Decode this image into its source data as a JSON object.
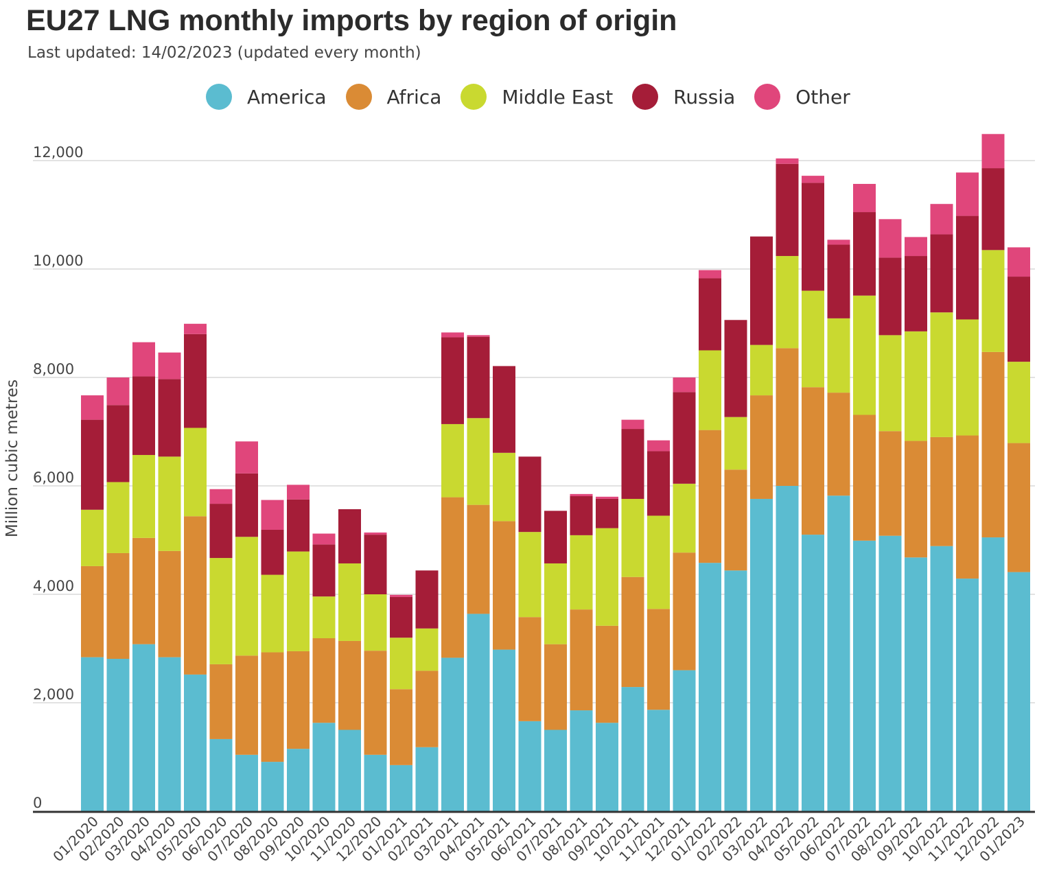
{
  "chart_data": {
    "type": "bar",
    "stacked": true,
    "title": "EU27 LNG monthly imports by region of origin",
    "subtitle": "Last updated: 14/02/2023 (updated every month)",
    "ylabel": "Million cubic metres",
    "xlabel": "",
    "ylim": [
      0,
      12000
    ],
    "yticks": [
      0,
      2000,
      4000,
      6000,
      8000,
      10000,
      12000
    ],
    "ytick_labels": [
      "0",
      "2,000",
      "4,000",
      "6,000",
      "8,000",
      "10,000",
      "12,000"
    ],
    "grid": true,
    "legend_position": "top",
    "categories": [
      "01/2020",
      "02/2020",
      "03/2020",
      "04/2020",
      "05/2020",
      "06/2020",
      "07/2020",
      "08/2020",
      "09/2020",
      "10/2020",
      "11/2020",
      "12/2020",
      "01/2021",
      "02/2021",
      "03/2021",
      "04/2021",
      "05/2021",
      "06/2021",
      "07/2021",
      "08/2021",
      "09/2021",
      "10/2021",
      "11/2021",
      "12/2021",
      "01/2022",
      "02/2022",
      "03/2022",
      "04/2022",
      "05/2022",
      "06/2022",
      "07/2022",
      "08/2022",
      "09/2022",
      "10/2022",
      "11/2022",
      "12/2022",
      "01/2023"
    ],
    "series": [
      {
        "name": "America",
        "color": "#5bbcd0",
        "values": [
          2840,
          2810,
          3080,
          2840,
          2520,
          1330,
          1040,
          910,
          1150,
          1630,
          1500,
          1040,
          850,
          1180,
          2830,
          3640,
          2980,
          1660,
          1500,
          1860,
          1630,
          2290,
          1870,
          2600,
          4580,
          4440,
          5760,
          6000,
          5100,
          5820,
          4990,
          5080,
          4680,
          4890,
          4290,
          5050,
          4410
        ]
      },
      {
        "name": "Africa",
        "color": "#da8b35",
        "values": [
          1680,
          1950,
          1960,
          1960,
          2920,
          1380,
          1830,
          2020,
          1800,
          1560,
          1640,
          1920,
          1400,
          1410,
          2960,
          2010,
          2370,
          1920,
          1580,
          1860,
          1790,
          2030,
          1860,
          2170,
          2450,
          1860,
          1910,
          2540,
          2720,
          1900,
          2320,
          1930,
          2150,
          2010,
          2640,
          3420,
          2380
        ]
      },
      {
        "name": "Middle East",
        "color": "#c9d930",
        "values": [
          1040,
          1310,
          1530,
          1740,
          1630,
          1960,
          2190,
          1430,
          1840,
          770,
          1430,
          1040,
          950,
          780,
          1350,
          1600,
          1260,
          1570,
          1490,
          1370,
          1800,
          1440,
          1720,
          1270,
          1470,
          970,
          930,
          1700,
          1780,
          1370,
          2200,
          1770,
          2020,
          2300,
          2140,
          1880,
          1500
        ]
      },
      {
        "name": "Russia",
        "color": "#a51d38",
        "values": [
          1660,
          1420,
          1450,
          1430,
          1730,
          1000,
          1170,
          830,
          960,
          960,
          1000,
          1100,
          750,
          1070,
          1600,
          1500,
          1600,
          1390,
          970,
          720,
          540,
          1290,
          1190,
          1690,
          1330,
          1790,
          2000,
          1700,
          1990,
          1360,
          1540,
          1430,
          1390,
          1440,
          1910,
          1510,
          1570
        ]
      },
      {
        "name": "Other",
        "color": "#e0467b",
        "values": [
          450,
          510,
          630,
          490,
          190,
          270,
          590,
          550,
          270,
          200,
          0,
          40,
          40,
          0,
          90,
          30,
          0,
          0,
          0,
          40,
          40,
          170,
          200,
          270,
          150,
          0,
          0,
          100,
          130,
          90,
          520,
          710,
          350,
          560,
          800,
          630,
          540
        ]
      }
    ]
  }
}
